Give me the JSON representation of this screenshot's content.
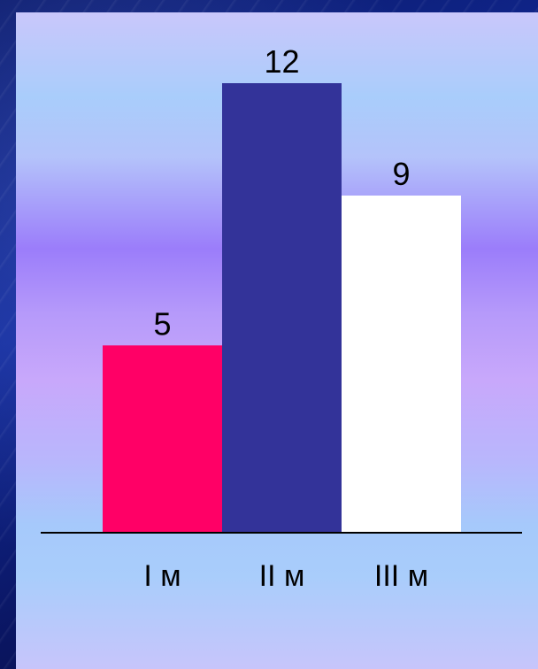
{
  "chart_data": {
    "type": "bar",
    "categories": [
      "I м",
      "II м",
      "III м"
    ],
    "values": [
      5,
      12,
      9
    ],
    "data_labels": [
      "5",
      "12",
      "9"
    ],
    "colors": [
      "#ff0066",
      "#333399",
      "#ffffff"
    ],
    "title": "",
    "xlabel": "",
    "ylabel": "",
    "ylim": [
      0,
      12
    ],
    "grid": false,
    "legend": "none"
  }
}
